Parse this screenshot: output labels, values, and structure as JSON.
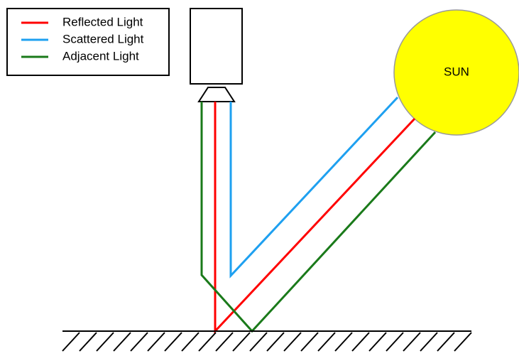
{
  "legend": {
    "items": [
      {
        "label": "Reflected Light",
        "color": "#ff0000"
      },
      {
        "label": "Scattered Light",
        "color": "#1ea0f0"
      },
      {
        "label": "Adjacent Light",
        "color": "#1a7a1a"
      }
    ]
  },
  "sun": {
    "label": "SUN",
    "color": "#ffff00"
  }
}
